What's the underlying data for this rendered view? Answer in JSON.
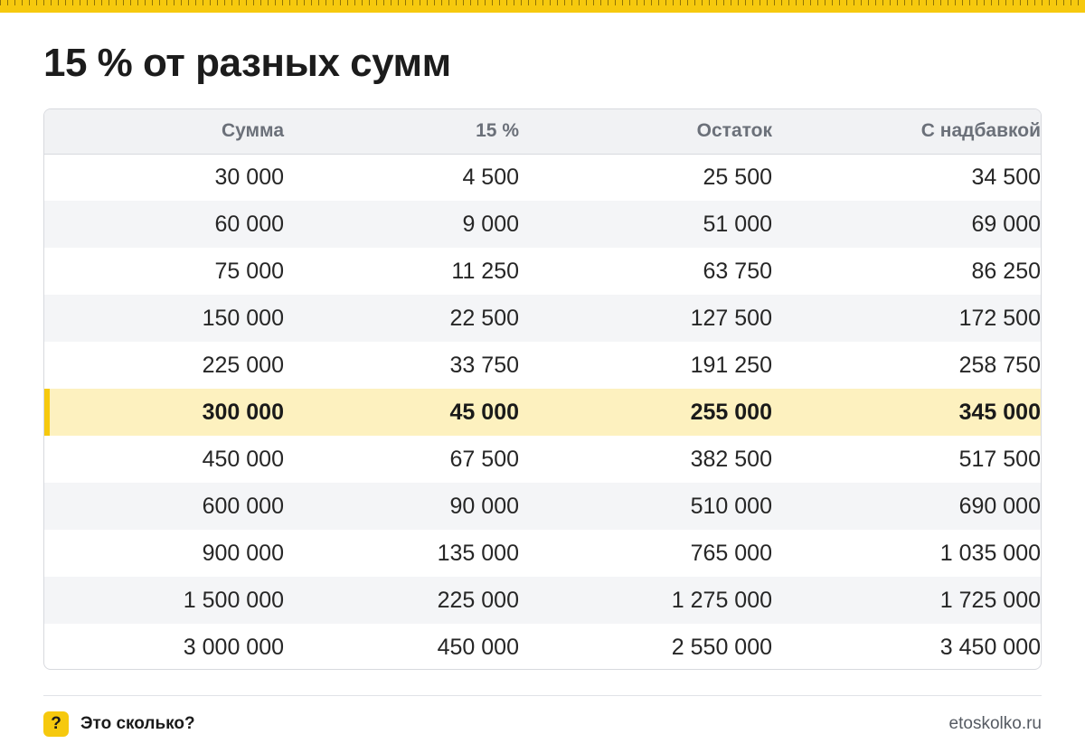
{
  "page": {
    "title": "15 % от разных сумм"
  },
  "table": {
    "headers": [
      "Сумма",
      "15 %",
      "Остаток",
      "С надбавкой"
    ],
    "highlight_row_index": 5,
    "rows": [
      [
        "30 000",
        "4 500",
        "25 500",
        "34 500"
      ],
      [
        "60 000",
        "9 000",
        "51 000",
        "69 000"
      ],
      [
        "75 000",
        "11 250",
        "63 750",
        "86 250"
      ],
      [
        "150 000",
        "22 500",
        "127 500",
        "172 500"
      ],
      [
        "225 000",
        "33 750",
        "191 250",
        "258 750"
      ],
      [
        "300 000",
        "45 000",
        "255 000",
        "345 000"
      ],
      [
        "450 000",
        "67 500",
        "382 500",
        "517 500"
      ],
      [
        "600 000",
        "90 000",
        "510 000",
        "690 000"
      ],
      [
        "900 000",
        "135 000",
        "765 000",
        "1 035 000"
      ],
      [
        "1 500 000",
        "225 000",
        "1 275 000",
        "1 725 000"
      ],
      [
        "3 000 000",
        "450 000",
        "2 550 000",
        "3 450 000"
      ]
    ]
  },
  "footer": {
    "badge_icon": "question-mark-icon",
    "badge_glyph": "?",
    "brand": "Это сколько?",
    "site": "etoskolko.ru"
  },
  "colors": {
    "accent": "#f6c90e",
    "highlight_row": "#fdf1bf",
    "header_bg": "#f1f2f4",
    "alt_row": "#f4f5f7"
  }
}
